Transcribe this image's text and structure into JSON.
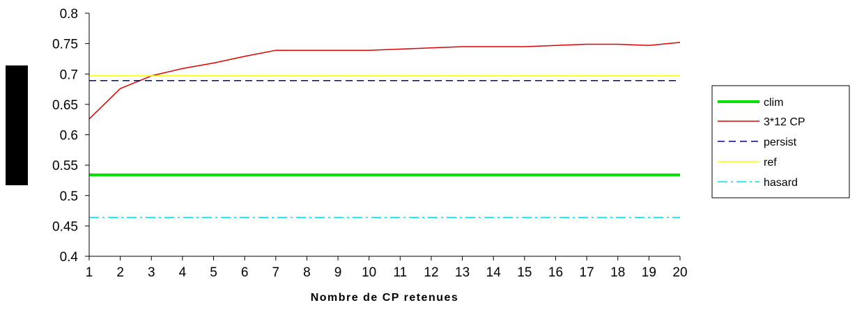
{
  "chart_data": {
    "type": "line",
    "xlabel": "Nombre de CP retenues",
    "ylabel": "",
    "x": [
      1,
      2,
      3,
      4,
      5,
      6,
      7,
      8,
      9,
      10,
      11,
      12,
      13,
      14,
      15,
      16,
      17,
      18,
      19,
      20
    ],
    "xlim": [
      1,
      20
    ],
    "ylim": [
      0.4,
      0.8
    ],
    "yticks": [
      "0.4",
      "0.45",
      "0.5",
      "0.55",
      "0.6",
      "0.65",
      "0.7",
      "0.75",
      "0.8"
    ],
    "grid": false,
    "legend_position": "right",
    "series": [
      {
        "name": "clim",
        "color": "#00e000",
        "style": "solid-thick",
        "values": [
          0.534,
          0.534,
          0.534,
          0.534,
          0.534,
          0.534,
          0.534,
          0.534,
          0.534,
          0.534,
          0.534,
          0.534,
          0.534,
          0.534,
          0.534,
          0.534,
          0.534,
          0.534,
          0.534,
          0.534
        ]
      },
      {
        "name": "3*12 CP",
        "color": "#e00000",
        "style": "solid",
        "values": [
          0.626,
          0.676,
          0.697,
          0.709,
          0.718,
          0.729,
          0.739,
          0.739,
          0.739,
          0.739,
          0.741,
          0.743,
          0.745,
          0.745,
          0.745,
          0.747,
          0.749,
          0.749,
          0.747,
          0.752
        ]
      },
      {
        "name": "persist",
        "color": "#000090",
        "style": "dashed",
        "values": [
          0.689,
          0.689,
          0.689,
          0.689,
          0.689,
          0.689,
          0.689,
          0.689,
          0.689,
          0.689,
          0.689,
          0.689,
          0.689,
          0.689,
          0.689,
          0.689,
          0.689,
          0.689,
          0.689,
          0.689
        ]
      },
      {
        "name": "ref",
        "color": "#ffff00",
        "style": "solid",
        "values": [
          0.697,
          0.697,
          0.697,
          0.697,
          0.697,
          0.697,
          0.697,
          0.697,
          0.697,
          0.697,
          0.697,
          0.697,
          0.697,
          0.697,
          0.697,
          0.697,
          0.697,
          0.697,
          0.697,
          0.697
        ]
      },
      {
        "name": "hasard",
        "color": "#00e0e0",
        "style": "dashdot",
        "values": [
          0.464,
          0.464,
          0.464,
          0.464,
          0.464,
          0.464,
          0.464,
          0.464,
          0.464,
          0.464,
          0.464,
          0.464,
          0.464,
          0.464,
          0.464,
          0.464,
          0.464,
          0.464,
          0.464,
          0.464
        ]
      }
    ]
  }
}
